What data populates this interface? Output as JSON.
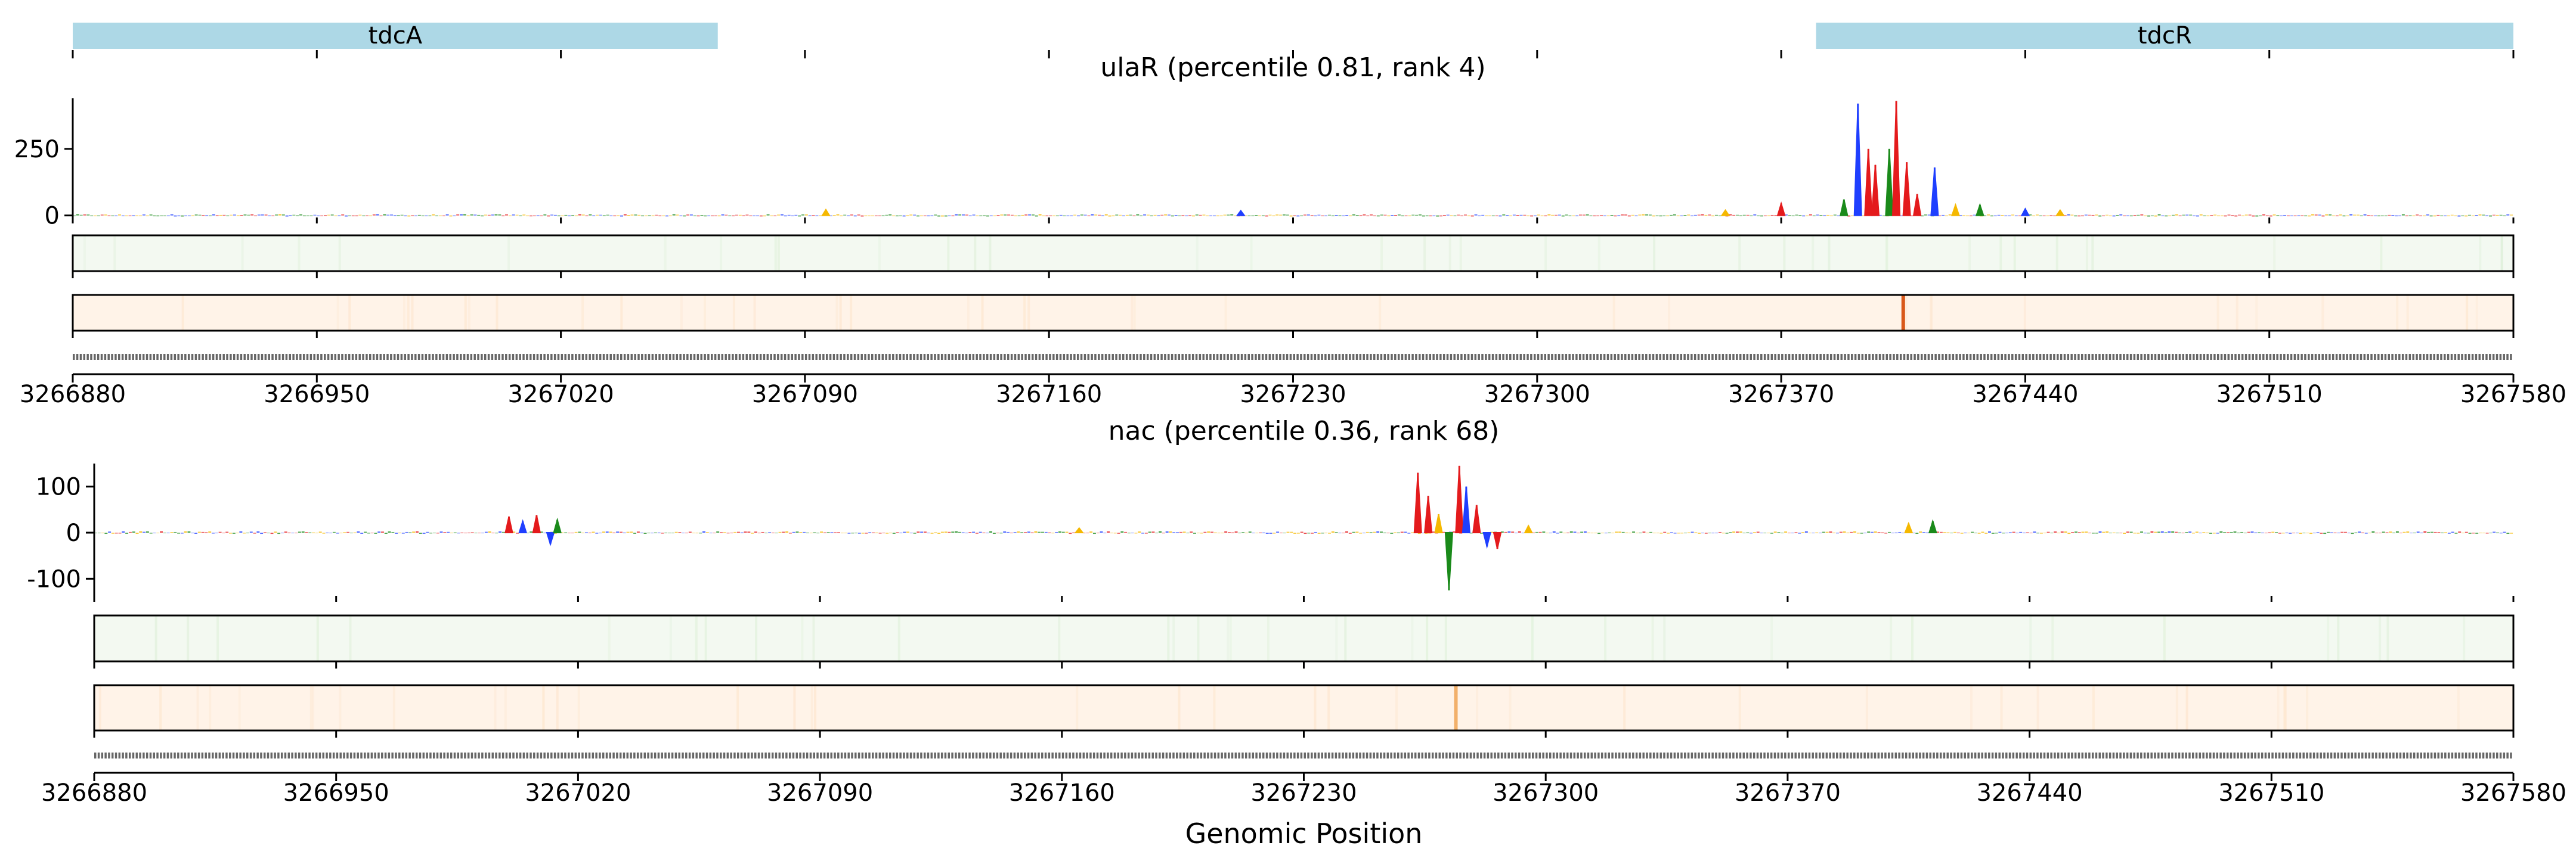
{
  "chart_data": [
    {
      "type": "line",
      "title": "ulaR (percentile 0.81, rank 4)",
      "ylabel": "",
      "y_ticks": [
        0,
        250
      ],
      "ylim": [
        -30,
        440
      ],
      "xlim": [
        3266880,
        3267580
      ],
      "x_ticks": [
        3266880,
        3266950,
        3267020,
        3267090,
        3267160,
        3267230,
        3267300,
        3267370,
        3267440,
        3267510,
        3267580
      ],
      "x_tick_labels": [
        "3266880",
        "3266950",
        "3267020",
        "3267090",
        "3267160",
        "3267230",
        "3267300",
        "3267370",
        "3267440",
        "3267510",
        "3267580"
      ],
      "gene_track": [
        {
          "name": "tdcA",
          "start": 3266880,
          "end": 3267065
        },
        {
          "name": "tdcR",
          "start": 3267380,
          "end": 3267580
        }
      ],
      "attribution_peaks": [
        {
          "position": 3267354,
          "value": 20,
          "base": "T"
        },
        {
          "position": 3267370,
          "value": 45,
          "base": "A"
        },
        {
          "position": 3267388,
          "value": 60,
          "base": "G"
        },
        {
          "position": 3267392,
          "value": 420,
          "base": "C"
        },
        {
          "position": 3267395,
          "value": 250,
          "base": "A"
        },
        {
          "position": 3267397,
          "value": 190,
          "base": "A"
        },
        {
          "position": 3267401,
          "value": 250,
          "base": "G"
        },
        {
          "position": 3267403,
          "value": 430,
          "base": "A"
        },
        {
          "position": 3267406,
          "value": 200,
          "base": "A"
        },
        {
          "position": 3267409,
          "value": 80,
          "base": "A"
        },
        {
          "position": 3267414,
          "value": 180,
          "base": "C"
        },
        {
          "position": 3267420,
          "value": 40,
          "base": "T"
        },
        {
          "position": 3267427,
          "value": 40,
          "base": "G"
        },
        {
          "position": 3267440,
          "value": 25,
          "base": "C"
        },
        {
          "position": 3267450,
          "value": 20,
          "base": "T"
        },
        {
          "position": 3267096,
          "value": 22,
          "base": "T"
        },
        {
          "position": 3267215,
          "value": 18,
          "base": "C"
        }
      ],
      "heatmap_track_1": {
        "color": "green",
        "highlight_position": null
      },
      "heatmap_track_2": {
        "color": "orange",
        "highlight_position": 3267405
      }
    },
    {
      "type": "line",
      "title": "nac (percentile 0.36, rank 68)",
      "ylabel": "",
      "y_ticks": [
        -100,
        0,
        100
      ],
      "ylim": [
        -150,
        150
      ],
      "xlim": [
        3266880,
        3267580
      ],
      "x_ticks": [
        3266880,
        3266950,
        3267020,
        3267090,
        3267160,
        3267230,
        3267300,
        3267370,
        3267440,
        3267510,
        3267580
      ],
      "x_tick_labels": [
        "3266880",
        "3266950",
        "3267020",
        "3267090",
        "3267160",
        "3267230",
        "3267300",
        "3267370",
        "3267440",
        "3267510",
        "3267580"
      ],
      "xlabel": "Genomic Position",
      "attribution_peaks": [
        {
          "position": 3267000,
          "value": 35,
          "base": "A"
        },
        {
          "position": 3267004,
          "value": 25,
          "base": "C"
        },
        {
          "position": 3267008,
          "value": 38,
          "base": "A"
        },
        {
          "position": 3267012,
          "value": -25,
          "base": "C"
        },
        {
          "position": 3267014,
          "value": 28,
          "base": "G"
        },
        {
          "position": 3267263,
          "value": 130,
          "base": "A"
        },
        {
          "position": 3267266,
          "value": 80,
          "base": "A"
        },
        {
          "position": 3267269,
          "value": 40,
          "base": "T"
        },
        {
          "position": 3267272,
          "value": -125,
          "base": "G"
        },
        {
          "position": 3267275,
          "value": 145,
          "base": "A"
        },
        {
          "position": 3267277,
          "value": 100,
          "base": "C"
        },
        {
          "position": 3267280,
          "value": 60,
          "base": "A"
        },
        {
          "position": 3267283,
          "value": -30,
          "base": "C"
        },
        {
          "position": 3267286,
          "value": -35,
          "base": "A"
        },
        {
          "position": 3267295,
          "value": 15,
          "base": "T"
        },
        {
          "position": 3267405,
          "value": 20,
          "base": "T"
        },
        {
          "position": 3267412,
          "value": 25,
          "base": "G"
        },
        {
          "position": 3267165,
          "value": 10,
          "base": "T"
        }
      ],
      "heatmap_track_1": {
        "color": "green",
        "highlight_position": null
      },
      "heatmap_track_2": {
        "color": "orange",
        "highlight_position": 3267274
      }
    }
  ]
}
